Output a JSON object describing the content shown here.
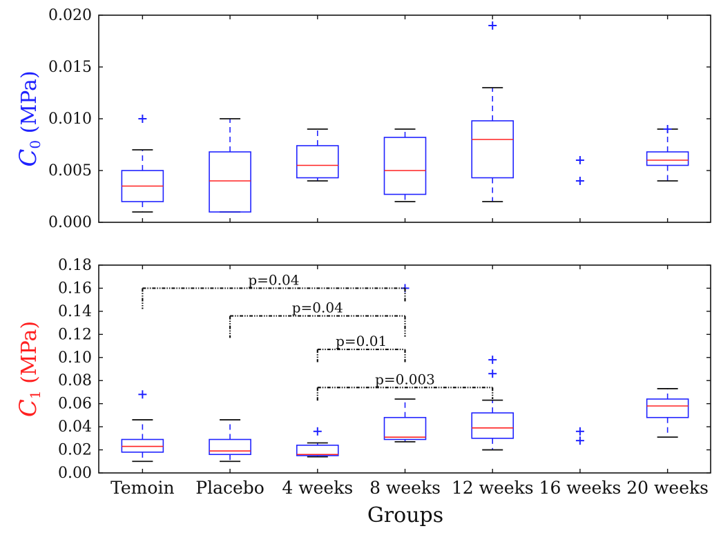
{
  "colors": {
    "box": "#1f22ff",
    "median": "#ff2020",
    "bracket": "#111111",
    "axis": "#111111"
  },
  "chart_data": [
    {
      "type": "box",
      "ylabel_var": "C",
      "ylabel_sub": "0",
      "ylabel_unit": "(MPa)",
      "ylabel_color": "#1f22ff",
      "ylim": [
        0,
        0.02
      ],
      "yticks": [
        "0.000",
        "0.005",
        "0.010",
        "0.015",
        "0.020"
      ],
      "ytick_values": [
        0,
        0.005,
        0.01,
        0.015,
        0.02
      ],
      "groups": [
        {
          "name": "Temoin",
          "q1": 0.002,
          "median": 0.0035,
          "q3": 0.005,
          "whisker_low": 0.001,
          "whisker_high": 0.007,
          "outliers": [
            0.01
          ]
        },
        {
          "name": "Placebo",
          "q1": 0.001,
          "median": 0.004,
          "q3": 0.0068,
          "whisker_low": 0.001,
          "whisker_high": 0.01,
          "outliers": []
        },
        {
          "name": "4 weeks",
          "q1": 0.0043,
          "median": 0.0055,
          "q3": 0.0074,
          "whisker_low": 0.004,
          "whisker_high": 0.009,
          "outliers": []
        },
        {
          "name": "8 weeks",
          "q1": 0.0027,
          "median": 0.005,
          "q3": 0.0082,
          "whisker_low": 0.002,
          "whisker_high": 0.009,
          "outliers": []
        },
        {
          "name": "12 weeks",
          "q1": 0.0043,
          "median": 0.008,
          "q3": 0.0098,
          "whisker_low": 0.002,
          "whisker_high": 0.013,
          "outliers": [
            0.019
          ]
        },
        {
          "name": "16 weeks",
          "q1": null,
          "median": null,
          "q3": null,
          "whisker_low": null,
          "whisker_high": null,
          "outliers": [
            0.004,
            0.006
          ]
        },
        {
          "name": "20 weeks",
          "q1": 0.0055,
          "median": 0.006,
          "q3": 0.0068,
          "whisker_low": 0.004,
          "whisker_high": 0.009,
          "outliers": [
            0.009
          ]
        }
      ],
      "brackets": []
    },
    {
      "type": "box",
      "ylabel_var": "C",
      "ylabel_sub": "1",
      "ylabel_unit": "(MPa)",
      "ylabel_color": "#ff2020",
      "ylim": [
        0,
        0.18
      ],
      "yticks": [
        "0.00",
        "0.02",
        "0.04",
        "0.06",
        "0.08",
        "0.10",
        "0.12",
        "0.14",
        "0.16",
        "0.18"
      ],
      "ytick_values": [
        0,
        0.02,
        0.04,
        0.06,
        0.08,
        0.1,
        0.12,
        0.14,
        0.16,
        0.18
      ],
      "groups": [
        {
          "name": "Temoin",
          "q1": 0.018,
          "median": 0.023,
          "q3": 0.029,
          "whisker_low": 0.01,
          "whisker_high": 0.046,
          "outliers": [
            0.068
          ]
        },
        {
          "name": "Placebo",
          "q1": 0.016,
          "median": 0.019,
          "q3": 0.029,
          "whisker_low": 0.01,
          "whisker_high": 0.046,
          "outliers": []
        },
        {
          "name": "4 weeks",
          "q1": 0.015,
          "median": 0.016,
          "q3": 0.024,
          "whisker_low": 0.014,
          "whisker_high": 0.026,
          "outliers": [
            0.036
          ]
        },
        {
          "name": "8 weeks",
          "q1": 0.029,
          "median": 0.031,
          "q3": 0.048,
          "whisker_low": 0.027,
          "whisker_high": 0.064,
          "outliers": [
            0.16
          ]
        },
        {
          "name": "12 weeks",
          "q1": 0.03,
          "median": 0.039,
          "q3": 0.052,
          "whisker_low": 0.02,
          "whisker_high": 0.063,
          "outliers": [
            0.086,
            0.098
          ]
        },
        {
          "name": "16 weeks",
          "q1": null,
          "median": null,
          "q3": null,
          "whisker_low": null,
          "whisker_high": null,
          "outliers": [
            0.028,
            0.036
          ]
        },
        {
          "name": "20 weeks",
          "q1": 0.048,
          "median": 0.058,
          "q3": 0.064,
          "whisker_low": 0.031,
          "whisker_high": 0.073,
          "outliers": []
        }
      ],
      "brackets": [
        {
          "from": "Temoin",
          "to": "8 weeks",
          "label": "p=0.04",
          "y": 0.16,
          "left_end": 0.142,
          "right_end": 0.148
        },
        {
          "from": "Placebo",
          "to": "8 weeks",
          "label": "p=0.04",
          "y": 0.136,
          "left_end": 0.117,
          "right_end": 0.118
        },
        {
          "from": "4 weeks",
          "to": "8 weeks",
          "label": "p=0.01",
          "y": 0.107,
          "left_end": 0.096,
          "right_end": 0.096
        },
        {
          "from": "4 weeks",
          "to": "12 weeks",
          "label": "p=0.003",
          "y": 0.074,
          "left_end": 0.062,
          "right_end": 0.064
        }
      ]
    }
  ],
  "xlabel": "Groups"
}
